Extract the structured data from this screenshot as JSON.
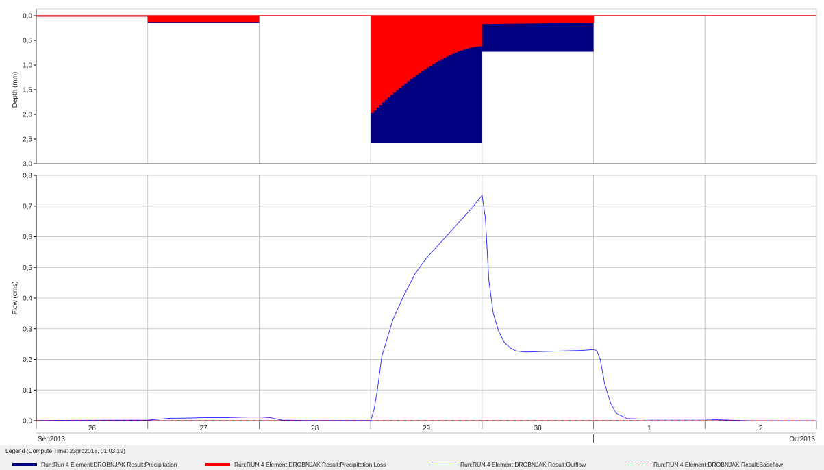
{
  "colors": {
    "precipitation": "#000080",
    "precipitation_loss": "#ff0000",
    "outflow": "#3333ff",
    "baseflow": "#cc0000",
    "grid": "#c8c8c8",
    "axis": "#000000"
  },
  "chart_data": [
    {
      "type": "bar",
      "panel": "depth",
      "xlabel": "",
      "ylabel": "Depth (mm)",
      "ylim": [
        0,
        3.0
      ],
      "y_inverted": true,
      "y_ticks": [
        "0,0",
        "0,5",
        "1,0",
        "1,5",
        "2,0",
        "2,5",
        "3,0"
      ],
      "grid": true,
      "series": [
        {
          "name": "Run:Run 4 Element:DROBNJAK Result:Precipitation",
          "color": "#000080",
          "segments": [
            {
              "start": "Sep 26 00:00",
              "end": "Sep 27 00:00",
              "value": 0.02
            },
            {
              "start": "Sep 27 00:00",
              "end": "Sep 28 00:00",
              "value": 0.15
            },
            {
              "start": "Sep 29 00:00",
              "end": "Sep 30 00:00",
              "value": 2.57
            },
            {
              "start": "Sep 30 00:00",
              "end": "Oct 01 00:00",
              "value": 0.73
            },
            {
              "start": "Oct 01 00:00",
              "end": "Oct 02 00:00",
              "value": 0.01
            }
          ]
        },
        {
          "name": "Run:RUN 4 Element:DROBNJAK Result:Precipitation Loss",
          "color": "#ff0000",
          "segments": [
            {
              "start": "Sep 26 00:00",
              "end": "Sep 27 00:00",
              "value": 0.02
            },
            {
              "start": "Sep 27 00:00",
              "end": "Sep 28 00:00",
              "value": 0.13
            },
            {
              "start": "Sep 29 00:00",
              "end": "Sep 30 00:00",
              "value_start": 1.97,
              "value_end": 0.62
            },
            {
              "start": "Sep 30 00:00",
              "end": "Oct 01 00:00",
              "value_start": 0.17,
              "value_end": 0.15
            },
            {
              "start": "Oct 01 00:00",
              "end": "Oct 02 00:00",
              "value": 0.01
            }
          ]
        }
      ]
    },
    {
      "type": "line",
      "panel": "flow",
      "xlabel": "",
      "ylabel": "Flow (cms)",
      "ylim": [
        0,
        0.8
      ],
      "y_ticks": [
        "0,0",
        "0,1",
        "0,2",
        "0,3",
        "0,4",
        "0,5",
        "0,6",
        "0,7",
        "0,8"
      ],
      "grid": true,
      "x_day_labels": [
        "26",
        "27",
        "28",
        "29",
        "30",
        "1",
        "2"
      ],
      "x_month_labels": [
        "Sep2013",
        "Oct2013"
      ],
      "series": [
        {
          "name": "Run:RUN 4 Element:DROBNJAK Result:Outflow",
          "color": "#3333ff",
          "x_days": [
            0,
            1.0,
            1.2,
            1.4,
            1.5,
            1.7,
            1.9,
            2.0,
            2.1,
            2.2,
            2.4,
            2.9,
            3.0,
            3.03,
            3.06,
            3.1,
            3.15,
            3.2,
            3.25,
            3.3,
            3.4,
            3.5,
            3.6,
            3.7,
            3.8,
            3.9,
            4.0,
            4.03,
            4.06,
            4.1,
            4.15,
            4.2,
            4.25,
            4.3,
            4.35,
            4.4,
            4.5,
            4.7,
            4.9,
            5.0,
            5.03,
            5.06,
            5.1,
            5.15,
            5.2,
            5.3,
            5.5,
            6.0,
            6.2,
            6.4,
            7.0
          ],
          "values": [
            0.001,
            0.002,
            0.008,
            0.009,
            0.01,
            0.01,
            0.012,
            0.012,
            0.01,
            0.002,
            0.001,
            0.001,
            0.001,
            0.035,
            0.1,
            0.21,
            0.27,
            0.33,
            0.37,
            0.41,
            0.48,
            0.53,
            0.57,
            0.61,
            0.65,
            0.69,
            0.735,
            0.66,
            0.46,
            0.35,
            0.29,
            0.255,
            0.238,
            0.228,
            0.225,
            0.224,
            0.225,
            0.227,
            0.229,
            0.232,
            0.228,
            0.2,
            0.12,
            0.06,
            0.025,
            0.007,
            0.005,
            0.005,
            0.002,
            0.0,
            0.0
          ]
        },
        {
          "name": "Run:RUN 4 Element:DROBNJAK Result:Baseflow",
          "color": "#cc0000",
          "dashed": true,
          "x_days": [
            0,
            7.0
          ],
          "values": [
            0.0,
            0.0
          ]
        }
      ]
    }
  ],
  "legend": {
    "title": "Legend (Compute Time: 23pro2018, 01:03:19)",
    "items": [
      {
        "label": "Run:Run 4 Element:DROBNJAK Result:Precipitation",
        "color": "#000080",
        "style": "thick"
      },
      {
        "label": "Run:RUN 4 Element:DROBNJAK Result:Precipitation Loss",
        "color": "#ff0000",
        "style": "thick"
      },
      {
        "label": "Run:RUN 4 Element:DROBNJAK Result:Outflow",
        "color": "#3333ff",
        "style": "thin"
      },
      {
        "label": "Run:RUN 4 Element:DROBNJAK Result:Baseflow",
        "color": "#cc0000",
        "style": "dashed"
      }
    ]
  }
}
